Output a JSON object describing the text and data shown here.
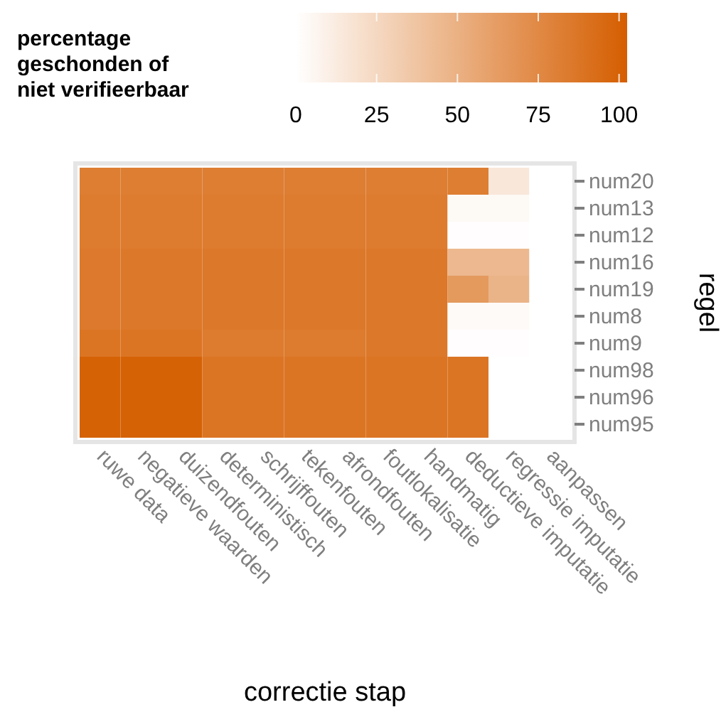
{
  "chart_data": {
    "type": "heatmap",
    "xlabel": "correctie stap",
    "ylabel": "regel",
    "clabel": "percentage\ngeschonden of\nniet verifieerbaar",
    "categories": [
      "ruwe data",
      "negatieve waarden",
      "duizendfouten",
      "deterministisch",
      "schrijffouten",
      "tekenfouten",
      "afrondfouten",
      "foutlokalisatie",
      "handmatig",
      "deductieve imputatie",
      "regressie imputatie",
      "aanpassen"
    ],
    "y_categories": [
      "num20",
      "num13",
      "num12",
      "num16",
      "num19",
      "num8",
      "num9",
      "num98",
      "num96",
      "num95"
    ],
    "cells": [
      [
        82,
        82,
        82,
        82,
        82,
        82,
        82,
        82,
        82,
        82,
        15,
        0
      ],
      [
        84,
        84,
        84,
        84,
        84,
        84,
        84,
        84,
        84,
        4,
        4,
        0
      ],
      [
        84,
        84,
        84,
        84,
        84,
        84,
        84,
        84,
        84,
        1,
        1,
        0
      ],
      [
        85,
        86,
        86,
        86,
        86,
        86,
        86,
        86,
        86,
        45,
        45,
        0
      ],
      [
        85,
        86,
        86,
        86,
        86,
        86,
        86,
        86,
        86,
        65,
        48,
        0
      ],
      [
        85,
        86,
        86,
        86,
        86,
        86,
        86,
        86,
        86,
        3,
        3,
        0
      ],
      [
        88,
        88,
        88,
        84,
        84,
        84,
        84,
        86,
        86,
        1,
        1,
        0
      ],
      [
        100,
        100,
        100,
        88,
        88,
        88,
        88,
        88,
        88,
        88,
        0,
        0
      ],
      [
        100,
        100,
        100,
        88,
        88,
        88,
        88,
        88,
        88,
        88,
        0,
        0
      ],
      [
        100,
        100,
        100,
        88,
        88,
        88,
        88,
        88,
        88,
        88,
        0,
        0
      ]
    ],
    "clim": [
      0,
      102.5
    ],
    "cticks": [
      0,
      25,
      50,
      75,
      100
    ]
  }
}
